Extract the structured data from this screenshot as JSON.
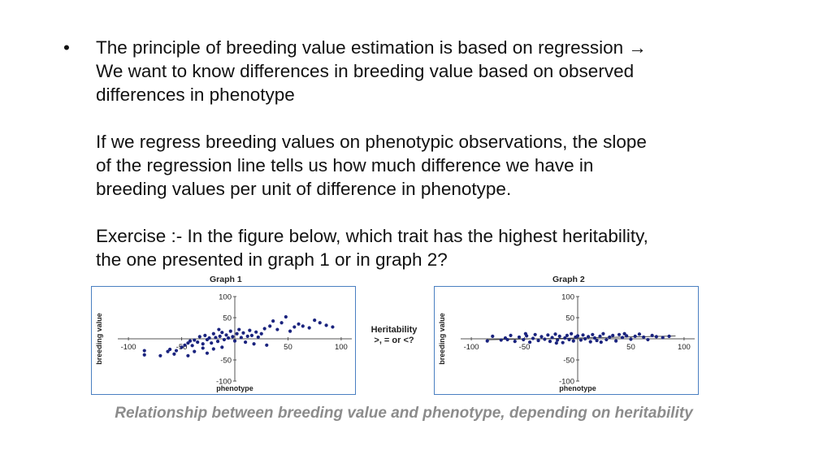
{
  "slide": {
    "bullet": "•",
    "paragraphs": [
      [
        "The principle of breeding value estimation is based on regression →",
        "We want to know differences in breeding value based on observed",
        "differences in phenotype"
      ],
      [
        "If we regress breeding values on phenotypic observations, the slope",
        "of the regression line tells us how much difference we have in",
        "breeding values per unit of difference in phenotype."
      ],
      [
        "Exercise :- In the figure below, which trait has the highest heritability,",
        "the one presented in graph 1 or in graph 2?"
      ]
    ],
    "between_labels": [
      "Heritability",
      ">, = or <?"
    ],
    "caption": "Relationship between breeding value and phenotype, depending on heritability",
    "colors": {
      "frame": "#4a7fc1",
      "points": "#1a237e",
      "caption": "#8c8c8c"
    }
  },
  "chart_data": [
    {
      "type": "scatter",
      "title": "Graph 1",
      "xlabel": "phenotype",
      "ylabel": "breeding value",
      "xlim": [
        -110,
        110
      ],
      "ylim": [
        -100,
        100
      ],
      "x_ticks": [
        -100,
        -50,
        50,
        100
      ],
      "y_ticks": [
        100,
        50,
        -50,
        -100
      ],
      "grid": false,
      "points": [
        [
          -85,
          -28
        ],
        [
          -85,
          -38
        ],
        [
          -63,
          -30
        ],
        [
          -61,
          -25
        ],
        [
          -57,
          -36
        ],
        [
          -55,
          -28
        ],
        [
          -50,
          -20
        ],
        [
          -47,
          -15
        ],
        [
          -44,
          -10
        ],
        [
          -42,
          -5
        ],
        [
          -40,
          -16
        ],
        [
          -38,
          -3
        ],
        [
          -35,
          -8
        ],
        [
          -33,
          5
        ],
        [
          -30,
          -12
        ],
        [
          -28,
          8
        ],
        [
          -26,
          -2
        ],
        [
          -24,
          2
        ],
        [
          -22,
          -10
        ],
        [
          -20,
          12
        ],
        [
          -18,
          3
        ],
        [
          -16,
          -6
        ],
        [
          -14,
          6
        ],
        [
          -12,
          15
        ],
        [
          -10,
          -2
        ],
        [
          -8,
          9
        ],
        [
          -6,
          2
        ],
        [
          -4,
          18
        ],
        [
          -2,
          5
        ],
        [
          0,
          -5
        ],
        [
          2,
          12
        ],
        [
          4,
          22
        ],
        [
          6,
          3
        ],
        [
          8,
          14
        ],
        [
          10,
          -8
        ],
        [
          12,
          6
        ],
        [
          14,
          20
        ],
        [
          16,
          8
        ],
        [
          18,
          -12
        ],
        [
          20,
          16
        ],
        [
          22,
          4
        ],
        [
          25,
          12
        ],
        [
          28,
          24
        ],
        [
          30,
          -15
        ],
        [
          33,
          30
        ],
        [
          36,
          42
        ],
        [
          40,
          22
        ],
        [
          44,
          38
        ],
        [
          48,
          52
        ],
        [
          52,
          18
        ],
        [
          56,
          28
        ],
        [
          60,
          35
        ],
        [
          64,
          30
        ],
        [
          70,
          26
        ],
        [
          75,
          44
        ],
        [
          80,
          38
        ],
        [
          86,
          32
        ],
        [
          92,
          28
        ],
        [
          -38,
          -30
        ],
        [
          -30,
          -22
        ],
        [
          -26,
          -34
        ],
        [
          -44,
          -40
        ],
        [
          -20,
          -24
        ],
        [
          -12,
          -20
        ],
        [
          -70,
          -40
        ],
        [
          -15,
          22
        ]
      ]
    },
    {
      "type": "scatter",
      "title": "Graph 2",
      "xlabel": "phenotype",
      "ylabel": "breeding value",
      "xlim": [
        -110,
        110
      ],
      "ylim": [
        -100,
        100
      ],
      "x_ticks": [
        -100,
        -50,
        50,
        100
      ],
      "y_ticks": [
        100,
        50,
        -50,
        -100
      ],
      "grid": false,
      "regression": {
        "slope": 0.05,
        "intercept": 2
      },
      "points": [
        [
          -85,
          -5
        ],
        [
          -80,
          6
        ],
        [
          -72,
          -3
        ],
        [
          -68,
          2
        ],
        [
          -63,
          8
        ],
        [
          -59,
          -6
        ],
        [
          -55,
          4
        ],
        [
          -51,
          -2
        ],
        [
          -48,
          7
        ],
        [
          -45,
          -8
        ],
        [
          -42,
          1
        ],
        [
          -40,
          10
        ],
        [
          -37,
          -4
        ],
        [
          -34,
          5
        ],
        [
          -31,
          -1
        ],
        [
          -28,
          9
        ],
        [
          -26,
          -6
        ],
        [
          -24,
          3
        ],
        [
          -21,
          11
        ],
        [
          -19,
          -3
        ],
        [
          -17,
          6
        ],
        [
          -14,
          -9
        ],
        [
          -12,
          2
        ],
        [
          -10,
          8
        ],
        [
          -8,
          -2
        ],
        [
          -6,
          12
        ],
        [
          -4,
          -5
        ],
        [
          -2,
          4
        ],
        [
          0,
          7
        ],
        [
          3,
          -3
        ],
        [
          5,
          9
        ],
        [
          7,
          0
        ],
        [
          10,
          5
        ],
        [
          12,
          -7
        ],
        [
          14,
          10
        ],
        [
          16,
          2
        ],
        [
          18,
          -4
        ],
        [
          21,
          6
        ],
        [
          24,
          12
        ],
        [
          27,
          -2
        ],
        [
          30,
          4
        ],
        [
          33,
          8
        ],
        [
          36,
          -5
        ],
        [
          39,
          10
        ],
        [
          42,
          3
        ],
        [
          46,
          7
        ],
        [
          50,
          -1
        ],
        [
          54,
          6
        ],
        [
          58,
          11
        ],
        [
          62,
          4
        ],
        [
          66,
          -2
        ],
        [
          70,
          8
        ],
        [
          74,
          5
        ],
        [
          80,
          3
        ],
        [
          86,
          6
        ],
        [
          -66,
          -2
        ],
        [
          -49,
          12
        ],
        [
          -20,
          -10
        ],
        [
          22,
          -8
        ],
        [
          44,
          12
        ]
      ]
    }
  ]
}
